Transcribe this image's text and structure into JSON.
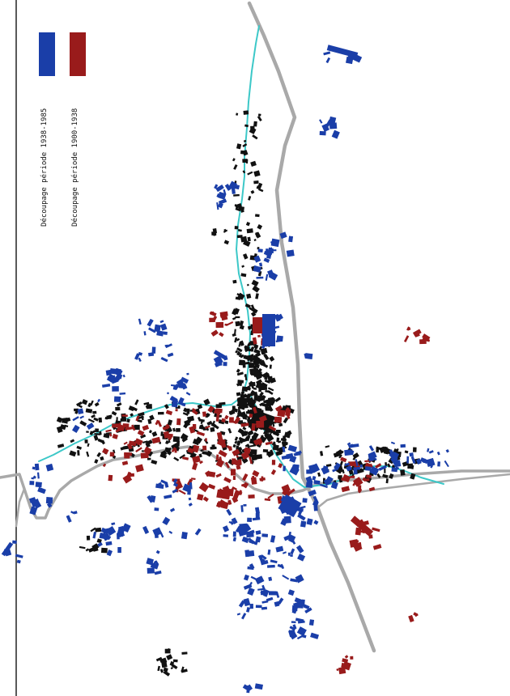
{
  "map": {
    "colors": {
      "background": "#ffffff",
      "road": "#a9a9a9",
      "river": "#3cc8c8",
      "frame": "#222222",
      "existing_buildings": "#111111",
      "period_1": "#991b1b",
      "period_2": "#1a3ea8"
    },
    "legend": {
      "items": [
        {
          "label": "Découpage période 1938-1985",
          "color": "#1a3ea8",
          "icon": "blue-swatch"
        },
        {
          "label": "Découpage période 1900-1938",
          "color": "#991b1b",
          "icon": "red-swatch"
        }
      ]
    }
  }
}
